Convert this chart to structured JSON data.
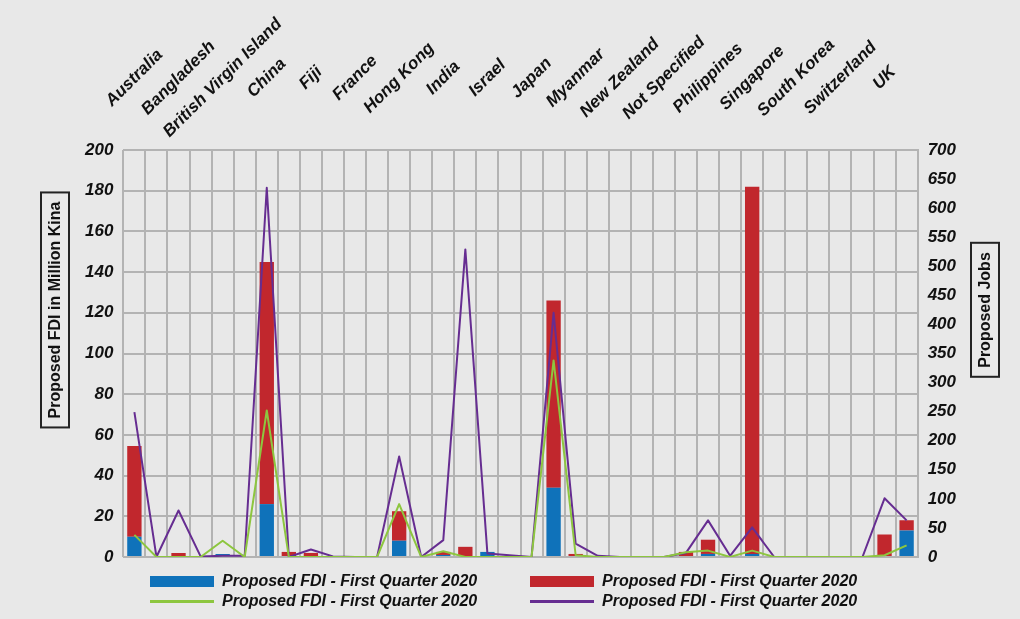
{
  "chart_data": {
    "type": "bar",
    "stacked": true,
    "ylabel": "Proposed FDI in Million Kina",
    "y2label": "Proposed Jobs",
    "categories": [
      "Australia",
      null,
      "Bangladesh",
      null,
      "British Virgin Island",
      null,
      "China",
      null,
      "Fiji",
      null,
      "France",
      null,
      "Hong Kong",
      null,
      "India",
      null,
      "Israel",
      null,
      "Japan",
      null,
      "Myanmar",
      null,
      "New Zealand",
      null,
      "Not Specified",
      null,
      "Philippines",
      null,
      "Singapore",
      null,
      "South Korea",
      null,
      "Switzerland",
      null,
      "UK",
      null
    ],
    "series": [
      {
        "name": "Proposed FDI - First Quarter 2020",
        "color": "#0f72ba",
        "values": [
          10,
          0,
          0,
          0,
          1.5,
          0,
          26,
          0,
          0,
          0,
          0,
          0,
          8,
          0,
          1,
          0,
          2.5,
          0,
          0,
          34,
          0,
          0,
          0,
          0,
          0,
          0,
          1.5,
          0,
          1.5,
          0,
          0,
          0,
          0,
          0,
          0,
          13
        ]
      },
      {
        "name": "Proposed FDI - First Quarter 2020",
        "color": "#c1272d",
        "values": [
          44.5,
          0,
          2,
          0,
          0,
          0,
          119,
          2.5,
          2,
          0,
          0,
          0,
          14.5,
          0,
          1.5,
          5,
          0,
          0,
          0,
          92,
          1.5,
          0,
          0,
          0,
          0,
          2.5,
          7,
          0,
          180.5,
          0,
          0,
          0,
          0,
          0,
          11,
          5
        ]
      },
      {
        "name": "Proposed FDI - First Quarter 2020",
        "type": "line",
        "axis": "y2",
        "color": "#8dc63f",
        "values": [
          38,
          0,
          0,
          0,
          28,
          0,
          252,
          0,
          0,
          0,
          0,
          0,
          91,
          0,
          10,
          0,
          0,
          0,
          0,
          338,
          3,
          0,
          0,
          0,
          0,
          8,
          11,
          0,
          11,
          0,
          0,
          0,
          0,
          0,
          3,
          20
        ]
      },
      {
        "name": "Proposed FDI - First Quarter 2020",
        "type": "line",
        "axis": "y2",
        "color": "#662d91",
        "values": [
          249,
          0,
          80,
          1,
          2,
          2,
          635,
          0,
          13,
          1,
          0,
          0,
          173,
          0,
          29,
          529,
          6,
          3,
          0,
          420,
          23,
          2,
          0,
          0,
          0,
          7,
          63,
          2,
          51,
          0,
          0,
          0,
          0,
          0,
          101,
          63
        ]
      }
    ],
    "ylim": [
      0,
      200
    ],
    "yticks": [
      0,
      20,
      40,
      60,
      80,
      100,
      120,
      140,
      160,
      180,
      200
    ],
    "y2lim": [
      0,
      700
    ],
    "y2ticks": [
      0,
      50,
      100,
      150,
      200,
      250,
      300,
      350,
      400,
      450,
      500,
      550,
      600,
      650,
      700
    ],
    "grid": true,
    "legend": "bottom",
    "marker": "none",
    "line_style": "solid"
  }
}
